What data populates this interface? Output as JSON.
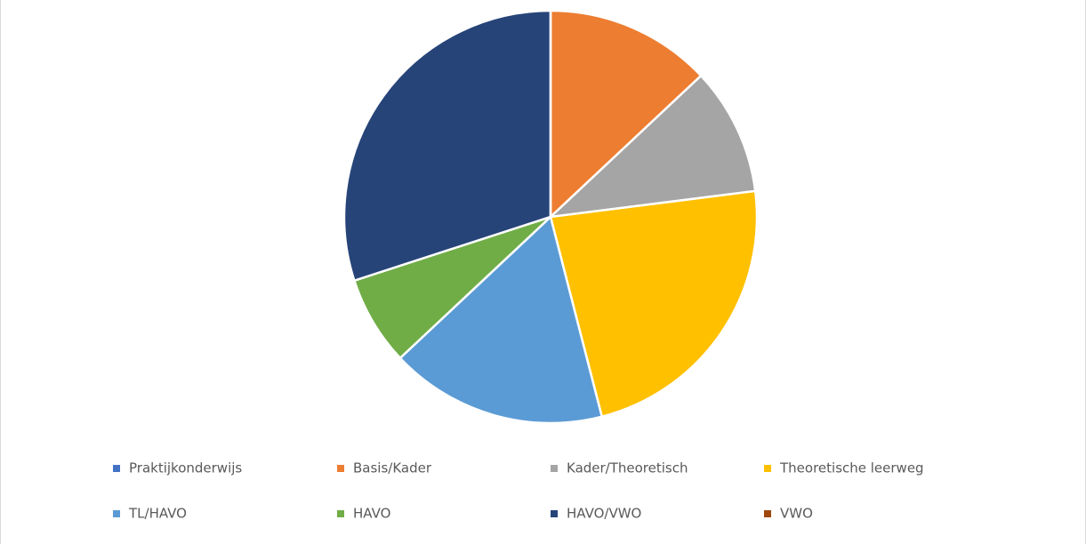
{
  "chart_data": {
    "type": "pie",
    "categories": [
      "Praktijkonderwijs",
      "Basis/Kader",
      "Kader/Theoretisch",
      "Theoretische leerweg",
      "TL/HAVO",
      "HAVO",
      "HAVO/VWO",
      "VWO"
    ],
    "values": [
      0,
      13,
      10,
      23,
      17,
      7,
      30,
      0
    ],
    "colors": [
      "#4472c4",
      "#ed7d31",
      "#a5a5a5",
      "#ffc000",
      "#5b9bd5",
      "#70ad47",
      "#264478",
      "#9e480e"
    ],
    "legend": "bottom"
  }
}
